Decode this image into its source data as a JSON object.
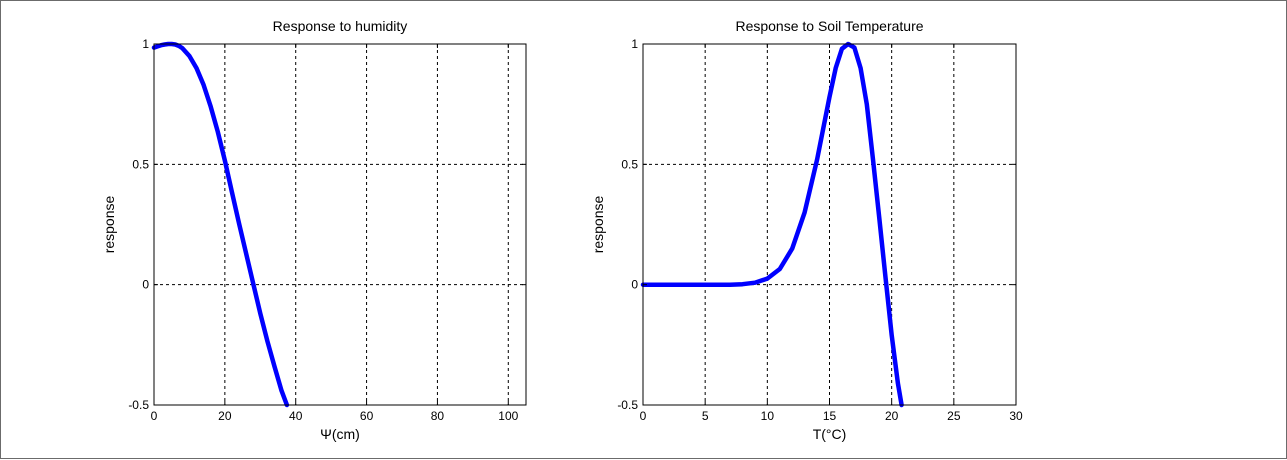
{
  "chart_data": [
    {
      "type": "line",
      "title": "Response to humidity",
      "xlabel": "Ψ(cm)",
      "ylabel": "response",
      "xlim": [
        0,
        105
      ],
      "ylim": [
        -0.5,
        1
      ],
      "xticks": [
        0,
        20,
        40,
        60,
        80,
        100
      ],
      "yticks": [
        -0.5,
        0,
        0.5,
        1
      ],
      "grid": true,
      "line_color": "#0000ff",
      "series": [
        {
          "x": [
            0,
            1,
            2,
            3,
            4,
            5,
            6,
            7,
            8,
            10,
            12,
            14,
            16,
            18,
            20,
            22,
            24,
            26,
            28,
            30,
            32,
            34,
            36,
            37.5
          ],
          "y": [
            0.985,
            0.99,
            0.995,
            0.998,
            1.0,
            1.0,
            0.998,
            0.992,
            0.983,
            0.95,
            0.9,
            0.83,
            0.74,
            0.635,
            0.515,
            0.385,
            0.255,
            0.13,
            0.005,
            -0.12,
            -0.235,
            -0.34,
            -0.44,
            -0.5
          ]
        }
      ]
    },
    {
      "type": "line",
      "title": "Response to Soil Temperature",
      "xlabel": "T(°C)",
      "ylabel": "response",
      "xlim": [
        0,
        30
      ],
      "ylim": [
        -0.5,
        1
      ],
      "xticks": [
        0,
        5,
        10,
        15,
        20,
        25,
        30
      ],
      "yticks": [
        -0.5,
        0,
        0.5,
        1
      ],
      "grid": true,
      "line_color": "#0000ff",
      "series": [
        {
          "x": [
            0,
            2,
            4,
            6,
            7,
            8,
            9,
            10,
            11,
            12,
            13,
            14,
            15,
            15.5,
            16,
            16.5,
            17,
            17.5,
            18,
            18.5,
            19,
            19.5,
            20,
            20.5,
            20.8
          ],
          "y": [
            0,
            0,
            0,
            0,
            0,
            0.002,
            0.008,
            0.025,
            0.065,
            0.15,
            0.3,
            0.52,
            0.78,
            0.9,
            0.98,
            1.0,
            0.985,
            0.9,
            0.75,
            0.52,
            0.28,
            0.03,
            -0.21,
            -0.41,
            -0.5
          ]
        }
      ]
    }
  ]
}
